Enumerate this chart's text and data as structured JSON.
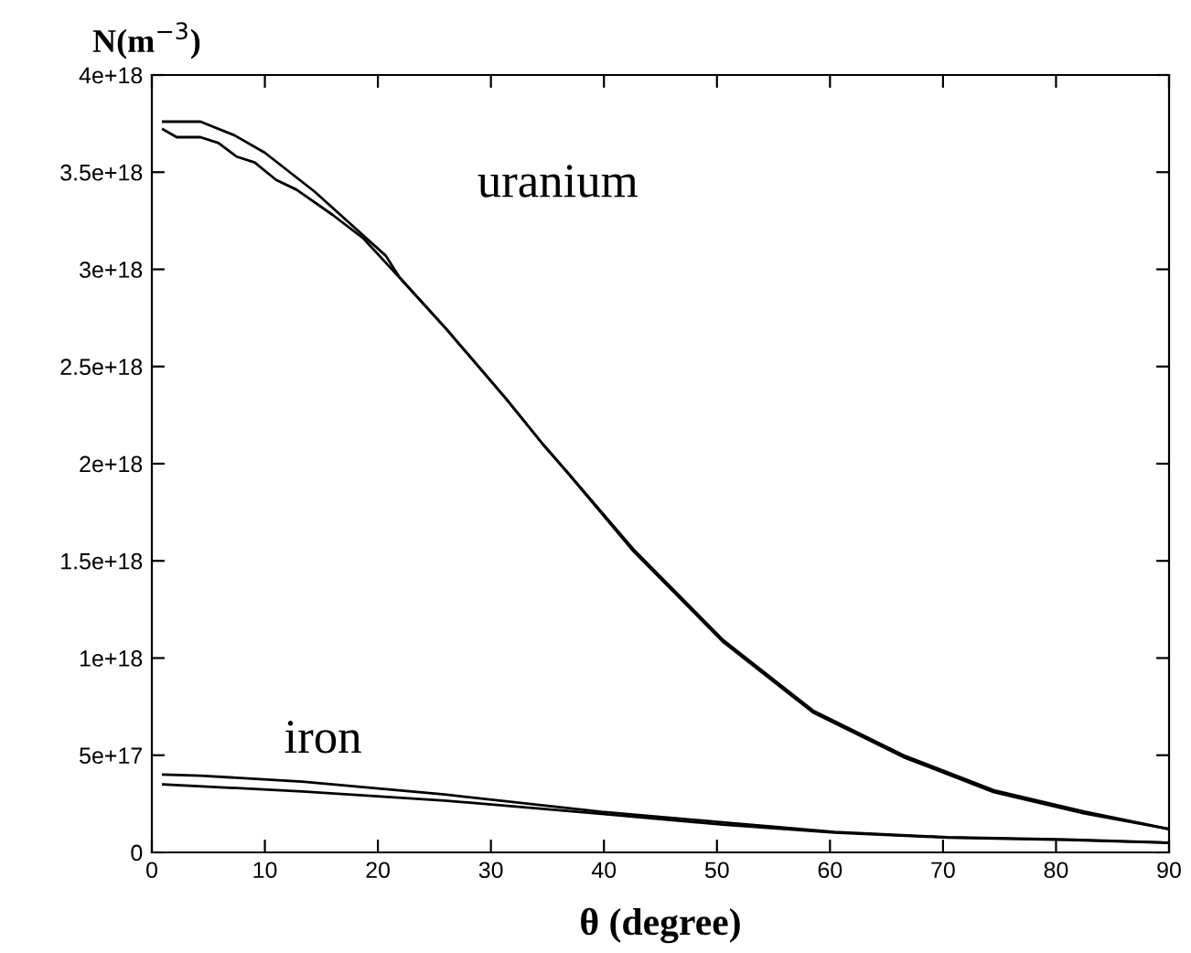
{
  "chart_data": {
    "type": "line",
    "xlabel": "θ (degree)",
    "ylabel": "N(m$^{−3}$)",
    "xlim": [
      0,
      90
    ],
    "xticks": [
      0,
      10,
      20,
      30,
      40,
      50,
      60,
      70,
      80,
      90
    ],
    "ylim": [
      0,
      4e+18
    ],
    "yticks": [
      {
        "value": 0,
        "label": "0"
      },
      {
        "value": 5e+17,
        "label": "5e+17"
      },
      {
        "value": 1e+18,
        "label": "1e+18"
      },
      {
        "value": 1.5e+18,
        "label": "1.5e+18"
      },
      {
        "value": 2e+18,
        "label": "2e+18"
      },
      {
        "value": 2.5e+18,
        "label": "2.5e+18"
      },
      {
        "value": 3e+18,
        "label": "3e+18"
      },
      {
        "value": 3.5e+18,
        "label": "3.5e+18"
      },
      {
        "value": 4e+18,
        "label": "4e+18"
      }
    ],
    "grid": false,
    "legend": false,
    "marker": "none",
    "line_style": "solid",
    "series": [
      {
        "color": "#000000",
        "x": [
          1,
          4.3,
          7.3,
          10,
          14.4,
          20.7,
          21.9,
          26.1,
          31.4,
          34.6,
          36.7,
          42.6,
          50.6,
          58.5,
          66.5,
          74.5,
          82.5,
          90
        ],
        "values": [
          3.76e+18,
          3.76e+18,
          3.69e+18,
          3.6e+18,
          3.4e+18,
          3.07e+18,
          2.96e+18,
          2.69e+18,
          2.33e+18,
          2.1e+18,
          1.96e+18,
          1.56e+18,
          1.09e+18,
          7.3e+17,
          5e+17,
          3.2e+17,
          2.1e+17,
          1.2e+17
        ]
      },
      {
        "color": "#000000",
        "x": [
          1,
          2.2,
          4.3,
          5.9,
          7.5,
          9.1,
          11,
          12.8,
          16,
          18.7,
          21.4,
          26.1,
          31.4,
          34.6,
          36.7,
          42.6,
          50.6,
          58.5,
          66.5,
          74.5,
          82.5,
          90
        ],
        "values": [
          3.72e+18,
          3.68e+18,
          3.68e+18,
          3.65e+18,
          3.58e+18,
          3.55e+18,
          3.46e+18,
          3.41e+18,
          3.28e+18,
          3.16e+18,
          2.99e+18,
          2.69e+18,
          2.33e+18,
          2.1e+18,
          1.96e+18,
          1.55e+18,
          1.08e+18,
          7.2e+17,
          4.9e+17,
          3.1e+17,
          2e+17,
          1.2e+17
        ]
      },
      {
        "color": "#000000",
        "x": [
          1,
          4.3,
          13.3,
          25.9,
          39.8,
          50.5,
          60.4,
          70.4,
          81,
          90
        ],
        "values": [
          4e+17,
          3.95e+17,
          3.64e+17,
          2.98e+17,
          2.09e+17,
          1.55e+17,
          1.05e+17,
          7.8e+16,
          6.6e+16,
          5e+16
        ]
      },
      {
        "color": "#000000",
        "x": [
          1,
          13.3,
          25.9,
          39.8,
          50.5,
          60.4,
          70.4,
          81,
          90
        ],
        "values": [
          3.5e+17,
          3.14e+17,
          2.67e+17,
          1.98e+17,
          1.43e+17,
          1.02e+17,
          7.6e+16,
          6.4e+16,
          4.9e+16
        ]
      }
    ],
    "annotations": [
      "uranium",
      "iron"
    ]
  }
}
